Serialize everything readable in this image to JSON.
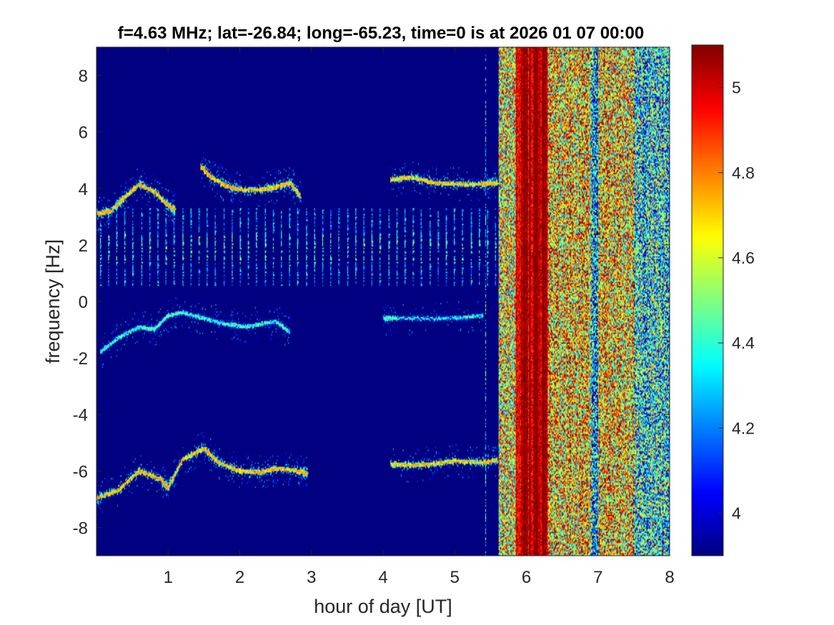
{
  "chart_data": {
    "type": "heatmap",
    "title": "f=4.63 MHz;  lat=-26.84; long=-65.23, time=0 is at 2026 01 07 00:00",
    "xlabel": "hour of day [UT]",
    "ylabel": "frequency [Hz]",
    "xlim": [
      0,
      8
    ],
    "ylim": [
      -9,
      9
    ],
    "xticks": [
      "1",
      "2",
      "3",
      "4",
      "5",
      "6",
      "7",
      "8"
    ],
    "yticks": [
      "-8",
      "-6",
      "-4",
      "-2",
      "0",
      "2",
      "4",
      "6",
      "8"
    ],
    "colorbar": {
      "colormap": "jet",
      "clim": [
        3.9,
        5.1
      ],
      "ticks": [
        "4",
        "4.2",
        "4.4",
        "4.6",
        "4.8",
        "5"
      ]
    },
    "background_value": 3.9,
    "colors": {
      "jet_low": "#00008f",
      "jet_high": "#800000",
      "background": "#0a0f9a"
    },
    "traces": [
      {
        "desc": "upper doppler trace A",
        "points": [
          [
            0,
            3.1
          ],
          [
            0.2,
            3.2
          ],
          [
            0.4,
            3.7
          ],
          [
            0.6,
            4.15
          ],
          [
            0.8,
            3.9
          ],
          [
            1.0,
            3.4
          ],
          [
            1.1,
            3.25
          ]
        ],
        "value": 4.8
      },
      {
        "desc": "upper doppler trace B",
        "points": [
          [
            1.45,
            4.8
          ],
          [
            1.6,
            4.4
          ],
          [
            1.8,
            4.1
          ],
          [
            2.0,
            3.95
          ],
          [
            2.3,
            3.95
          ],
          [
            2.5,
            4.05
          ],
          [
            2.7,
            4.2
          ],
          [
            2.85,
            3.7
          ]
        ],
        "value": 4.8
      },
      {
        "desc": "upper doppler trace C",
        "points": [
          [
            4.1,
            4.3
          ],
          [
            4.4,
            4.4
          ],
          [
            4.7,
            4.2
          ],
          [
            5.0,
            4.15
          ],
          [
            5.4,
            4.15
          ],
          [
            5.6,
            4.2
          ]
        ],
        "value": 4.8
      },
      {
        "desc": "lower doppler trace A",
        "points": [
          [
            0,
            -6.95
          ],
          [
            0.3,
            -6.7
          ],
          [
            0.6,
            -6.0
          ],
          [
            0.9,
            -6.3
          ],
          [
            1.0,
            -6.6
          ],
          [
            1.2,
            -5.6
          ],
          [
            1.5,
            -5.2
          ],
          [
            1.7,
            -5.7
          ],
          [
            2.0,
            -6.0
          ],
          [
            2.3,
            -6.05
          ],
          [
            2.5,
            -5.9
          ],
          [
            2.8,
            -6.0
          ],
          [
            2.95,
            -6.1
          ]
        ],
        "value": 4.8
      },
      {
        "desc": "lower doppler trace B",
        "points": [
          [
            4.1,
            -5.75
          ],
          [
            4.4,
            -5.8
          ],
          [
            4.7,
            -5.75
          ],
          [
            5.0,
            -5.65
          ],
          [
            5.4,
            -5.7
          ],
          [
            5.6,
            -5.6
          ]
        ],
        "value": 4.8
      },
      {
        "desc": "negative doppler trace",
        "points": [
          [
            0.05,
            -1.8
          ],
          [
            0.3,
            -1.3
          ],
          [
            0.6,
            -0.9
          ],
          [
            0.8,
            -1.0
          ],
          [
            1.0,
            -0.5
          ],
          [
            1.2,
            -0.4
          ],
          [
            1.5,
            -0.6
          ],
          [
            1.8,
            -0.8
          ],
          [
            2.1,
            -0.9
          ],
          [
            2.5,
            -0.7
          ],
          [
            2.7,
            -1.1
          ]
        ],
        "value": 4.5
      },
      {
        "desc": "negative doppler short trace",
        "points": [
          [
            4.0,
            -0.6
          ],
          [
            4.2,
            -0.6
          ],
          [
            5.0,
            -0.6
          ],
          [
            5.4,
            -0.5
          ]
        ],
        "value": 4.5
      }
    ],
    "vertical_bands": {
      "desc": "periodic vertical striations between ~0.6 and ~3.3 Hz",
      "x_start": 0.0,
      "x_end": 5.6,
      "spacing_hours": 0.115,
      "y_min": 0.6,
      "y_max": 3.3,
      "value": 4.45
    },
    "noise_region": {
      "desc": "broadband high-power region after ~5.6 UT",
      "x_start": 5.62,
      "x_end": 8.0,
      "hot_band": [
        5.85,
        6.3
      ],
      "hot_value": 5.05,
      "mean_value": 4.7
    }
  }
}
